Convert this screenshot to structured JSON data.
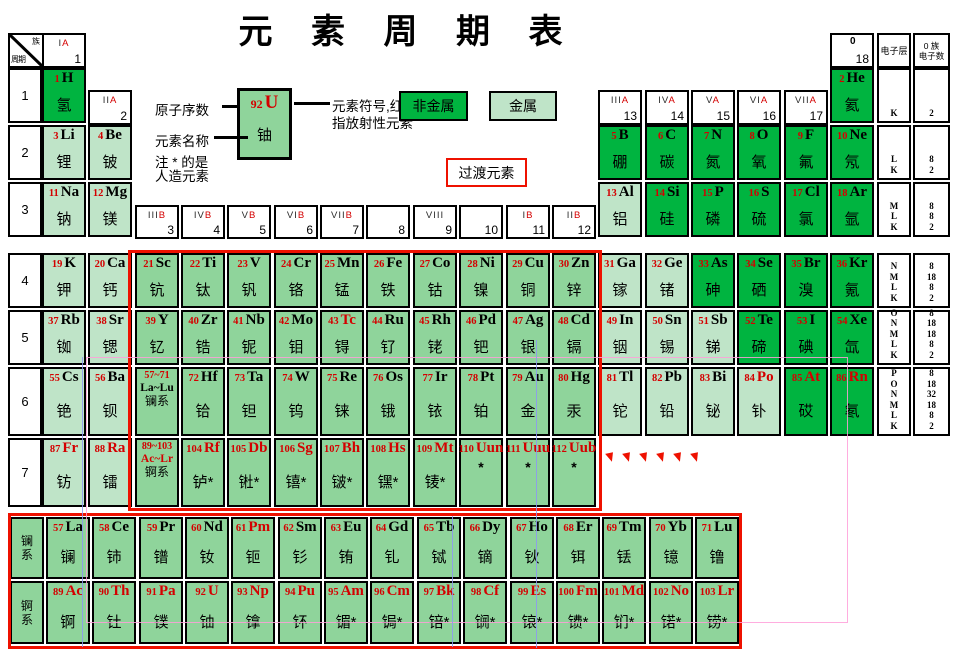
{
  "title": "元 素 周 期 表",
  "corner": {
    "top": "族",
    "bottom": "周期"
  },
  "legend": {
    "atomic_number_label": "原子序数",
    "element_name_label": "元素名称",
    "note_line1": "注 * 的是",
    "note_line2": "人造元素",
    "symbol_note_line1": "元素符号,红色",
    "symbol_note_line2": "指放射性元素",
    "sample": {
      "z": "92",
      "sym": "U",
      "name": "铀"
    },
    "nonmetal_label": "非金属",
    "metal_label": "金属",
    "transition_label": "过渡元素"
  },
  "right_header": {
    "group0_top": "0",
    "group0_num": "18",
    "shell": "电子层",
    "count_line1": "0 族",
    "count_line2": "电子数"
  },
  "periods": [
    "1",
    "2",
    "3",
    "4",
    "5",
    "6",
    "7"
  ],
  "groups": [
    {
      "label": "IA",
      "num": "1",
      "col": 1
    },
    {
      "label": "IIA",
      "num": "2",
      "col": 2
    },
    {
      "label": "IIIB",
      "num": "3",
      "col": 3
    },
    {
      "label": "IVB",
      "num": "4",
      "col": 4
    },
    {
      "label": "VB",
      "num": "5",
      "col": 5
    },
    {
      "label": "VIB",
      "num": "6",
      "col": 6
    },
    {
      "label": "VIIB",
      "num": "7",
      "col": 7
    },
    {
      "label": "",
      "num": "8",
      "col": 8
    },
    {
      "label": "VIII",
      "num": "9",
      "col": 9
    },
    {
      "label": "",
      "num": "10",
      "col": 10
    },
    {
      "label": "IB",
      "num": "11",
      "col": 11
    },
    {
      "label": "IIB",
      "num": "12",
      "col": 12
    },
    {
      "label": "IIIA",
      "num": "13",
      "col": 13
    },
    {
      "label": "IVA",
      "num": "14",
      "col": 14
    },
    {
      "label": "VA",
      "num": "15",
      "col": 15
    },
    {
      "label": "VIA",
      "num": "16",
      "col": 16
    },
    {
      "label": "VIIA",
      "num": "17",
      "col": 17
    }
  ],
  "shells": [
    {
      "period": 1,
      "letters": [
        "K"
      ],
      "counts": [
        "2"
      ]
    },
    {
      "period": 2,
      "letters": [
        "L",
        "K"
      ],
      "counts": [
        "8",
        "2"
      ]
    },
    {
      "period": 3,
      "letters": [
        "M",
        "L",
        "K"
      ],
      "counts": [
        "8",
        "8",
        "2"
      ]
    },
    {
      "period": 4,
      "letters": [
        "N",
        "M",
        "L",
        "K"
      ],
      "counts": [
        "8",
        "18",
        "8",
        "2"
      ]
    },
    {
      "period": 5,
      "letters": [
        "O",
        "N",
        "M",
        "L",
        "K"
      ],
      "counts": [
        "8",
        "18",
        "18",
        "8",
        "2"
      ]
    },
    {
      "period": 6,
      "letters": [
        "P",
        "O",
        "N",
        "M",
        "L",
        "K"
      ],
      "counts": [
        "8",
        "18",
        "32",
        "18",
        "8",
        "2"
      ]
    }
  ],
  "elements": [
    {
      "z": "1",
      "sym": "H",
      "name": "氢",
      "p": 1,
      "c": 1,
      "t": "dark"
    },
    {
      "z": "2",
      "sym": "He",
      "name": "氦",
      "p": 1,
      "c": 18,
      "t": "dark"
    },
    {
      "z": "3",
      "sym": "Li",
      "name": "锂",
      "p": 2,
      "c": 1,
      "t": "light"
    },
    {
      "z": "4",
      "sym": "Be",
      "name": "铍",
      "p": 2,
      "c": 2,
      "t": "light"
    },
    {
      "z": "5",
      "sym": "B",
      "name": "硼",
      "p": 2,
      "c": 13,
      "t": "dark"
    },
    {
      "z": "6",
      "sym": "C",
      "name": "碳",
      "p": 2,
      "c": 14,
      "t": "dark"
    },
    {
      "z": "7",
      "sym": "N",
      "name": "氮",
      "p": 2,
      "c": 15,
      "t": "dark"
    },
    {
      "z": "8",
      "sym": "O",
      "name": "氧",
      "p": 2,
      "c": 16,
      "t": "dark"
    },
    {
      "z": "9",
      "sym": "F",
      "name": "氟",
      "p": 2,
      "c": 17,
      "t": "dark"
    },
    {
      "z": "10",
      "sym": "Ne",
      "name": "氖",
      "p": 2,
      "c": 18,
      "t": "dark"
    },
    {
      "z": "11",
      "sym": "Na",
      "name": "钠",
      "p": 3,
      "c": 1,
      "t": "light"
    },
    {
      "z": "12",
      "sym": "Mg",
      "name": "镁",
      "p": 3,
      "c": 2,
      "t": "light"
    },
    {
      "z": "13",
      "sym": "Al",
      "name": "铝",
      "p": 3,
      "c": 13,
      "t": "light"
    },
    {
      "z": "14",
      "sym": "Si",
      "name": "硅",
      "p": 3,
      "c": 14,
      "t": "dark"
    },
    {
      "z": "15",
      "sym": "P",
      "name": "磷",
      "p": 3,
      "c": 15,
      "t": "dark"
    },
    {
      "z": "16",
      "sym": "S",
      "name": "硫",
      "p": 3,
      "c": 16,
      "t": "dark"
    },
    {
      "z": "17",
      "sym": "Cl",
      "name": "氯",
      "p": 3,
      "c": 17,
      "t": "dark"
    },
    {
      "z": "18",
      "sym": "Ar",
      "name": "氩",
      "p": 3,
      "c": 18,
      "t": "dark"
    },
    {
      "z": "19",
      "sym": "K",
      "name": "钾",
      "p": 4,
      "c": 1,
      "t": "light"
    },
    {
      "z": "20",
      "sym": "Ca",
      "name": "钙",
      "p": 4,
      "c": 2,
      "t": "light"
    },
    {
      "z": "21",
      "sym": "Sc",
      "name": "钪",
      "p": 4,
      "c": 3,
      "t": "med"
    },
    {
      "z": "22",
      "sym": "Ti",
      "name": "钛",
      "p": 4,
      "c": 4,
      "t": "med"
    },
    {
      "z": "23",
      "sym": "V",
      "name": "钒",
      "p": 4,
      "c": 5,
      "t": "med"
    },
    {
      "z": "24",
      "sym": "Cr",
      "name": "铬",
      "p": 4,
      "c": 6,
      "t": "med"
    },
    {
      "z": "25",
      "sym": "Mn",
      "name": "锰",
      "p": 4,
      "c": 7,
      "t": "med"
    },
    {
      "z": "26",
      "sym": "Fe",
      "name": "铁",
      "p": 4,
      "c": 8,
      "t": "med"
    },
    {
      "z": "27",
      "sym": "Co",
      "name": "钴",
      "p": 4,
      "c": 9,
      "t": "med"
    },
    {
      "z": "28",
      "sym": "Ni",
      "name": "镍",
      "p": 4,
      "c": 10,
      "t": "med"
    },
    {
      "z": "29",
      "sym": "Cu",
      "name": "铜",
      "p": 4,
      "c": 11,
      "t": "med"
    },
    {
      "z": "30",
      "sym": "Zn",
      "name": "锌",
      "p": 4,
      "c": 12,
      "t": "med"
    },
    {
      "z": "31",
      "sym": "Ga",
      "name": "镓",
      "p": 4,
      "c": 13,
      "t": "light"
    },
    {
      "z": "32",
      "sym": "Ge",
      "name": "锗",
      "p": 4,
      "c": 14,
      "t": "light"
    },
    {
      "z": "33",
      "sym": "As",
      "name": "砷",
      "p": 4,
      "c": 15,
      "t": "dark"
    },
    {
      "z": "34",
      "sym": "Se",
      "name": "硒",
      "p": 4,
      "c": 16,
      "t": "dark"
    },
    {
      "z": "35",
      "sym": "Br",
      "name": "溴",
      "p": 4,
      "c": 17,
      "t": "dark"
    },
    {
      "z": "36",
      "sym": "Kr",
      "name": "氪",
      "p": 4,
      "c": 18,
      "t": "dark"
    },
    {
      "z": "37",
      "sym": "Rb",
      "name": "铷",
      "p": 5,
      "c": 1,
      "t": "light"
    },
    {
      "z": "38",
      "sym": "Sr",
      "name": "锶",
      "p": 5,
      "c": 2,
      "t": "light"
    },
    {
      "z": "39",
      "sym": "Y",
      "name": "钇",
      "p": 5,
      "c": 3,
      "t": "med"
    },
    {
      "z": "40",
      "sym": "Zr",
      "name": "锆",
      "p": 5,
      "c": 4,
      "t": "med"
    },
    {
      "z": "41",
      "sym": "Nb",
      "name": "铌",
      "p": 5,
      "c": 5,
      "t": "med"
    },
    {
      "z": "42",
      "sym": "Mo",
      "name": "钼",
      "p": 5,
      "c": 6,
      "t": "med"
    },
    {
      "z": "43",
      "sym": "Tc",
      "name": "锝",
      "p": 5,
      "c": 7,
      "t": "med",
      "r": 1
    },
    {
      "z": "44",
      "sym": "Ru",
      "name": "钌",
      "p": 5,
      "c": 8,
      "t": "med"
    },
    {
      "z": "45",
      "sym": "Rh",
      "name": "铑",
      "p": 5,
      "c": 9,
      "t": "med"
    },
    {
      "z": "46",
      "sym": "Pd",
      "name": "钯",
      "p": 5,
      "c": 10,
      "t": "med"
    },
    {
      "z": "47",
      "sym": "Ag",
      "name": "银",
      "p": 5,
      "c": 11,
      "t": "med"
    },
    {
      "z": "48",
      "sym": "Cd",
      "name": "镉",
      "p": 5,
      "c": 12,
      "t": "med"
    },
    {
      "z": "49",
      "sym": "In",
      "name": "铟",
      "p": 5,
      "c": 13,
      "t": "light"
    },
    {
      "z": "50",
      "sym": "Sn",
      "name": "锡",
      "p": 5,
      "c": 14,
      "t": "light"
    },
    {
      "z": "51",
      "sym": "Sb",
      "name": "锑",
      "p": 5,
      "c": 15,
      "t": "light"
    },
    {
      "z": "52",
      "sym": "Te",
      "name": "碲",
      "p": 5,
      "c": 16,
      "t": "dark"
    },
    {
      "z": "53",
      "sym": "I",
      "name": "碘",
      "p": 5,
      "c": 17,
      "t": "dark"
    },
    {
      "z": "54",
      "sym": "Xe",
      "name": "氙",
      "p": 5,
      "c": 18,
      "t": "dark"
    },
    {
      "z": "55",
      "sym": "Cs",
      "name": "铯",
      "p": 6,
      "c": 1,
      "t": "light"
    },
    {
      "z": "56",
      "sym": "Ba",
      "name": "钡",
      "p": 6,
      "c": 2,
      "t": "light"
    },
    {
      "z": "57~71",
      "sym": "La~Lu",
      "name": "镧系",
      "p": 6,
      "c": 3,
      "t": "med",
      "range": 1
    },
    {
      "z": "72",
      "sym": "Hf",
      "name": "铪",
      "p": 6,
      "c": 4,
      "t": "med"
    },
    {
      "z": "73",
      "sym": "Ta",
      "name": "钽",
      "p": 6,
      "c": 5,
      "t": "med"
    },
    {
      "z": "74",
      "sym": "W",
      "name": "钨",
      "p": 6,
      "c": 6,
      "t": "med"
    },
    {
      "z": "75",
      "sym": "Re",
      "name": "铼",
      "p": 6,
      "c": 7,
      "t": "med"
    },
    {
      "z": "76",
      "sym": "Os",
      "name": "锇",
      "p": 6,
      "c": 8,
      "t": "med"
    },
    {
      "z": "77",
      "sym": "Ir",
      "name": "铱",
      "p": 6,
      "c": 9,
      "t": "med"
    },
    {
      "z": "78",
      "sym": "Pt",
      "name": "铂",
      "p": 6,
      "c": 10,
      "t": "med"
    },
    {
      "z": "79",
      "sym": "Au",
      "name": "金",
      "p": 6,
      "c": 11,
      "t": "med"
    },
    {
      "z": "80",
      "sym": "Hg",
      "name": "汞",
      "p": 6,
      "c": 12,
      "t": "med"
    },
    {
      "z": "81",
      "sym": "Tl",
      "name": "铊",
      "p": 6,
      "c": 13,
      "t": "light"
    },
    {
      "z": "82",
      "sym": "Pb",
      "name": "铅",
      "p": 6,
      "c": 14,
      "t": "light"
    },
    {
      "z": "83",
      "sym": "Bi",
      "name": "铋",
      "p": 6,
      "c": 15,
      "t": "light"
    },
    {
      "z": "84",
      "sym": "Po",
      "name": "钋",
      "p": 6,
      "c": 16,
      "t": "light",
      "r": 1
    },
    {
      "z": "85",
      "sym": "At",
      "name": "砹",
      "p": 6,
      "c": 17,
      "t": "dark",
      "r": 1
    },
    {
      "z": "86",
      "sym": "Rn",
      "name": "氡",
      "p": 6,
      "c": 18,
      "t": "dark",
      "r": 1
    },
    {
      "z": "87",
      "sym": "Fr",
      "name": "钫",
      "p": 7,
      "c": 1,
      "t": "light",
      "r": 1
    },
    {
      "z": "88",
      "sym": "Ra",
      "name": "镭",
      "p": 7,
      "c": 2,
      "t": "light",
      "r": 1
    },
    {
      "z": "89~103",
      "sym": "Ac~Lr",
      "name": "锕系",
      "p": 7,
      "c": 3,
      "t": "med",
      "range": 1,
      "r": 1
    },
    {
      "z": "104",
      "sym": "Rf",
      "name": "𬬻*",
      "p": 7,
      "c": 4,
      "t": "med",
      "r": 1
    },
    {
      "z": "105",
      "sym": "Db",
      "name": "𬭊*",
      "p": 7,
      "c": 5,
      "t": "med",
      "r": 1
    },
    {
      "z": "106",
      "sym": "Sg",
      "name": "𬭳*",
      "p": 7,
      "c": 6,
      "t": "med",
      "r": 1
    },
    {
      "z": "107",
      "sym": "Bh",
      "name": "𬭛*",
      "p": 7,
      "c": 7,
      "t": "med",
      "r": 1
    },
    {
      "z": "108",
      "sym": "Hs",
      "name": "𬭶*",
      "p": 7,
      "c": 8,
      "t": "med",
      "r": 1
    },
    {
      "z": "109",
      "sym": "Mt",
      "name": "鿏*",
      "p": 7,
      "c": 9,
      "t": "med",
      "r": 1
    },
    {
      "z": "110",
      "sym": "Uun",
      "name": "*",
      "p": 7,
      "c": 10,
      "t": "med",
      "r": 1
    },
    {
      "z": "111",
      "sym": "Uuu",
      "name": "*",
      "p": 7,
      "c": 11,
      "t": "med",
      "r": 1
    },
    {
      "z": "112",
      "sym": "Uub",
      "name": "*",
      "p": 7,
      "c": 12,
      "t": "med",
      "r": 1
    }
  ],
  "lanthanide_series": {
    "label_line1": "镧",
    "label_line2": "系",
    "items": [
      {
        "z": "57",
        "sym": "La",
        "name": "镧",
        "c": 1,
        "t": "med"
      },
      {
        "z": "58",
        "sym": "Ce",
        "name": "铈",
        "c": 2,
        "t": "med"
      },
      {
        "z": "59",
        "sym": "Pr",
        "name": "镨",
        "c": 3,
        "t": "med"
      },
      {
        "z": "60",
        "sym": "Nd",
        "name": "钕",
        "c": 4,
        "t": "med"
      },
      {
        "z": "61",
        "sym": "Pm",
        "name": "钷",
        "c": 5,
        "t": "med",
        "r": 1
      },
      {
        "z": "62",
        "sym": "Sm",
        "name": "钐",
        "c": 6,
        "t": "med"
      },
      {
        "z": "63",
        "sym": "Eu",
        "name": "铕",
        "c": 7,
        "t": "med"
      },
      {
        "z": "64",
        "sym": "Gd",
        "name": "钆",
        "c": 8,
        "t": "med"
      },
      {
        "z": "65",
        "sym": "Tb",
        "name": "铽",
        "c": 9,
        "t": "med"
      },
      {
        "z": "66",
        "sym": "Dy",
        "name": "镝",
        "c": 10,
        "t": "med"
      },
      {
        "z": "67",
        "sym": "Ho",
        "name": "钬",
        "c": 11,
        "t": "med"
      },
      {
        "z": "68",
        "sym": "Er",
        "name": "铒",
        "c": 12,
        "t": "med"
      },
      {
        "z": "69",
        "sym": "Tm",
        "name": "铥",
        "c": 13,
        "t": "med"
      },
      {
        "z": "70",
        "sym": "Yb",
        "name": "镱",
        "c": 14,
        "t": "med"
      },
      {
        "z": "71",
        "sym": "Lu",
        "name": "镥",
        "c": 15,
        "t": "med"
      }
    ]
  },
  "actinide_series": {
    "label_line1": "锕",
    "label_line2": "系",
    "items": [
      {
        "z": "89",
        "sym": "Ac",
        "name": "锕",
        "c": 1,
        "t": "med",
        "r": 1
      },
      {
        "z": "90",
        "sym": "Th",
        "name": "钍",
        "c": 2,
        "t": "med",
        "r": 1
      },
      {
        "z": "91",
        "sym": "Pa",
        "name": "镤",
        "c": 3,
        "t": "med",
        "r": 1
      },
      {
        "z": "92",
        "sym": "U",
        "name": "铀",
        "c": 4,
        "t": "med",
        "r": 1
      },
      {
        "z": "93",
        "sym": "Np",
        "name": "镎",
        "c": 5,
        "t": "med",
        "r": 1
      },
      {
        "z": "94",
        "sym": "Pu",
        "name": "钚",
        "c": 6,
        "t": "med",
        "r": 1
      },
      {
        "z": "95",
        "sym": "Am",
        "name": "镅*",
        "c": 7,
        "t": "med",
        "r": 1
      },
      {
        "z": "96",
        "sym": "Cm",
        "name": "锔*",
        "c": 8,
        "t": "med",
        "r": 1
      },
      {
        "z": "97",
        "sym": "Bk",
        "name": "锫*",
        "c": 9,
        "t": "med",
        "r": 1
      },
      {
        "z": "98",
        "sym": "Cf",
        "name": "锎*",
        "c": 10,
        "t": "med",
        "r": 1
      },
      {
        "z": "99",
        "sym": "Es",
        "name": "锿*",
        "c": 11,
        "t": "med",
        "r": 1
      },
      {
        "z": "100",
        "sym": "Fm",
        "name": "镄*",
        "c": 12,
        "t": "med",
        "r": 1
      },
      {
        "z": "101",
        "sym": "Md",
        "name": "钔*",
        "c": 13,
        "t": "med",
        "r": 1
      },
      {
        "z": "102",
        "sym": "No",
        "name": "锘*",
        "c": 14,
        "t": "med",
        "r": 1
      },
      {
        "z": "103",
        "sym": "Lr",
        "name": "铹*",
        "c": 15,
        "t": "med",
        "r": 1
      }
    ]
  },
  "continuation_dots": "、、、、、、",
  "colors": {
    "nonmetal_green": "#00b440",
    "transition_green": "#8fd49b",
    "metal_light_green": "#bfe4c8",
    "radioactive_red": "#d40000",
    "border_red": "#ee1100"
  }
}
